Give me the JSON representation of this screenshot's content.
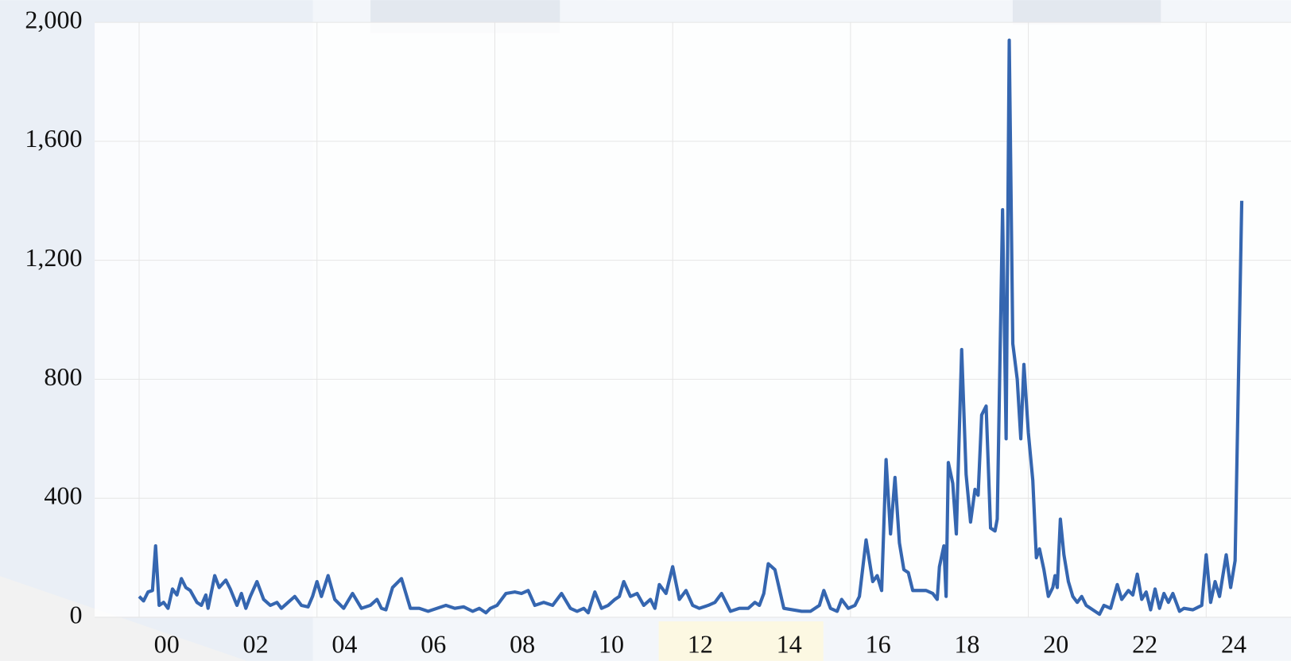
{
  "chart_data": {
    "type": "line",
    "color": "#3566b0",
    "grid": true,
    "xlim": [
      1999,
      2026
    ],
    "ylim": [
      0,
      2000
    ],
    "xticks": [
      {
        "value": 2000,
        "label": "00"
      },
      {
        "value": 2002,
        "label": "02"
      },
      {
        "value": 2004,
        "label": "04"
      },
      {
        "value": 2006,
        "label": "06"
      },
      {
        "value": 2008,
        "label": "08"
      },
      {
        "value": 2010,
        "label": "10"
      },
      {
        "value": 2012,
        "label": "12"
      },
      {
        "value": 2014,
        "label": "14"
      },
      {
        "value": 2016,
        "label": "16"
      },
      {
        "value": 2018,
        "label": "18"
      },
      {
        "value": 2020,
        "label": "20"
      },
      {
        "value": 2022,
        "label": "22"
      },
      {
        "value": 2024,
        "label": "24"
      }
    ],
    "yticks": [
      0,
      400,
      800,
      {
        "value": 1200,
        "label": "1,200"
      },
      {
        "value": 1600,
        "label": "1,600"
      },
      {
        "value": 2000,
        "label": "2,000"
      }
    ],
    "x": [
      2000.0,
      2000.1,
      2000.2,
      2000.3,
      2000.37,
      2000.45,
      2000.55,
      2000.65,
      2000.75,
      2000.85,
      2000.95,
      2001.05,
      2001.15,
      2001.3,
      2001.4,
      2001.5,
      2001.55,
      2001.7,
      2001.8,
      2001.95,
      2002.05,
      2002.2,
      2002.3,
      2002.4,
      2002.5,
      2002.65,
      2002.8,
      2002.95,
      2003.1,
      2003.2,
      2003.35,
      2003.5,
      2003.65,
      2003.8,
      2003.9,
      2004.0,
      2004.1,
      2004.25,
      2004.4,
      2004.6,
      2004.8,
      2005.0,
      2005.2,
      2005.35,
      2005.45,
      2005.55,
      2005.7,
      2005.9,
      2006.1,
      2006.3,
      2006.5,
      2006.7,
      2006.9,
      2007.1,
      2007.3,
      2007.5,
      2007.65,
      2007.8,
      2007.9,
      2008.05,
      2008.25,
      2008.45,
      2008.6,
      2008.75,
      2008.9,
      2009.1,
      2009.3,
      2009.5,
      2009.7,
      2009.85,
      2010.0,
      2010.1,
      2010.25,
      2010.4,
      2010.55,
      2010.7,
      2010.8,
      2010.9,
      2011.05,
      2011.2,
      2011.35,
      2011.5,
      2011.6,
      2011.7,
      2011.85,
      2012.0,
      2012.15,
      2012.3,
      2012.45,
      2012.6,
      2012.8,
      2012.95,
      2013.1,
      2013.3,
      2013.5,
      2013.7,
      2013.85,
      2013.95,
      2014.05,
      2014.15,
      2014.3,
      2014.5,
      2014.7,
      2014.9,
      2015.1,
      2015.3,
      2015.4,
      2015.55,
      2015.7,
      2015.8,
      2015.95,
      2016.1,
      2016.2,
      2016.35,
      2016.5,
      2016.6,
      2016.7,
      2016.8,
      2016.9,
      2017.0,
      2017.1,
      2017.2,
      2017.3,
      2017.4,
      2017.55,
      2017.7,
      2017.85,
      2017.95,
      2018.0,
      2018.1,
      2018.15,
      2018.2,
      2018.3,
      2018.38,
      2018.5,
      2018.6,
      2018.7,
      2018.8,
      2018.87,
      2018.95,
      2019.05,
      2019.15,
      2019.25,
      2019.3,
      2019.42,
      2019.5,
      2019.57,
      2019.65,
      2019.75,
      2019.83,
      2019.9,
      2020.0,
      2020.1,
      2020.18,
      2020.25,
      2020.35,
      2020.45,
      2020.55,
      2020.6,
      2020.65,
      2020.72,
      2020.8,
      2020.9,
      2021.0,
      2021.1,
      2021.2,
      2021.3,
      2021.5,
      2021.6,
      2021.7,
      2021.85,
      2022.0,
      2022.1,
      2022.25,
      2022.35,
      2022.45,
      2022.55,
      2022.65,
      2022.75,
      2022.85,
      2022.95,
      2023.05,
      2023.15,
      2023.25,
      2023.4,
      2023.5,
      2023.7,
      2023.9,
      2024.0,
      2024.1,
      2024.2,
      2024.3,
      2024.45,
      2024.55,
      2024.65,
      2024.8
    ],
    "values": [
      70,
      55,
      85,
      90,
      240,
      40,
      50,
      30,
      95,
      75,
      130,
      100,
      90,
      50,
      40,
      75,
      30,
      140,
      100,
      125,
      95,
      40,
      80,
      30,
      70,
      120,
      60,
      40,
      50,
      30,
      50,
      70,
      40,
      35,
      70,
      120,
      70,
      140,
      60,
      30,
      80,
      30,
      40,
      60,
      30,
      25,
      100,
      130,
      30,
      30,
      20,
      30,
      40,
      30,
      35,
      20,
      30,
      15,
      30,
      40,
      80,
      85,
      80,
      90,
      40,
      50,
      40,
      80,
      30,
      20,
      30,
      15,
      85,
      30,
      40,
      60,
      70,
      120,
      70,
      80,
      40,
      60,
      30,
      110,
      80,
      170,
      60,
      90,
      40,
      30,
      40,
      50,
      80,
      20,
      30,
      30,
      50,
      40,
      80,
      180,
      160,
      30,
      25,
      20,
      20,
      40,
      90,
      30,
      20,
      60,
      30,
      40,
      70,
      260,
      120,
      140,
      90,
      530,
      280,
      470,
      250,
      160,
      150,
      90,
      90,
      90,
      80,
      60,
      170,
      240,
      70,
      520,
      450,
      280,
      900,
      480,
      320,
      430,
      410,
      680,
      710,
      300,
      290,
      330,
      1370,
      600,
      1940,
      920,
      800,
      600,
      850,
      620,
      460,
      200,
      230,
      160,
      70,
      100,
      140,
      100,
      330,
      210,
      120,
      70,
      50,
      70,
      40,
      20,
      10,
      40,
      30,
      110,
      60,
      90,
      75,
      145,
      60,
      85,
      25,
      95,
      30,
      80,
      50,
      80,
      20,
      30,
      25,
      40,
      210,
      50,
      120,
      70,
      210,
      100,
      190,
      1400
    ]
  }
}
